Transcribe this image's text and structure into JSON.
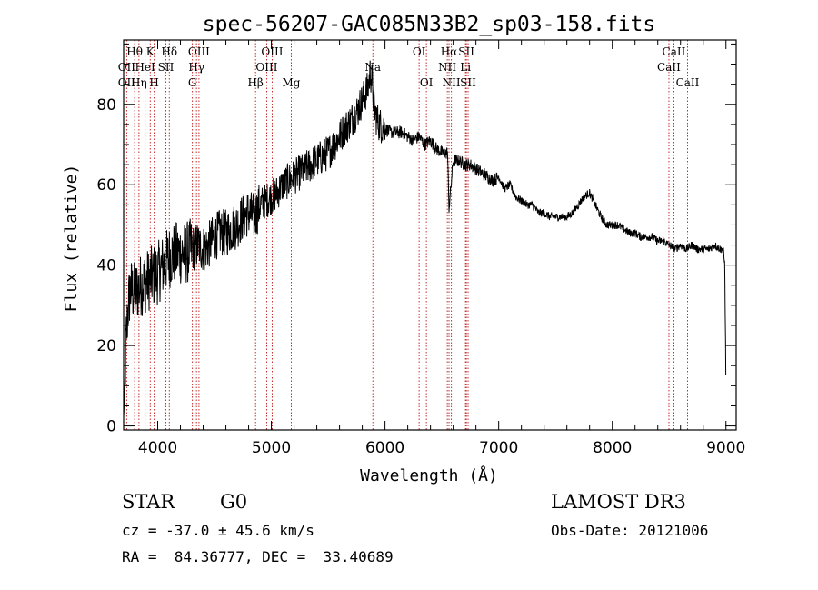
{
  "chart_data": {
    "type": "line",
    "title": "spec-56207-GAC085N33B2_sp03-158.fits",
    "xlabel": "Wavelength (Å)",
    "ylabel": "Flux (relative)",
    "xlim": [
      3700,
      9090
    ],
    "ylim": [
      -1,
      96
    ],
    "xticks": [
      4000,
      5000,
      6000,
      7000,
      8000,
      9000
    ],
    "yticks": [
      0,
      20,
      40,
      60,
      80
    ],
    "spectrum_anchors": {
      "x": [
        3700,
        3710,
        3720,
        3740,
        3760,
        3800,
        3850,
        3900,
        3950,
        4000,
        4050,
        4100,
        4150,
        4200,
        4250,
        4300,
        4350,
        4400,
        4450,
        4500,
        4550,
        4600,
        4650,
        4700,
        4750,
        4800,
        4850,
        4900,
        4950,
        5000,
        5050,
        5100,
        5150,
        5200,
        5250,
        5300,
        5350,
        5400,
        5450,
        5500,
        5550,
        5600,
        5650,
        5700,
        5750,
        5800,
        5850,
        5870,
        5890,
        5900,
        5920,
        5950,
        6000,
        6050,
        6100,
        6150,
        6200,
        6250,
        6300,
        6350,
        6400,
        6450,
        6500,
        6550,
        6563,
        6600,
        6650,
        6700,
        6750,
        6800,
        6850,
        6900,
        6950,
        7000,
        7050,
        7100,
        7150,
        7200,
        7250,
        7300,
        7350,
        7400,
        7450,
        7500,
        7550,
        7600,
        7650,
        7700,
        7750,
        7800,
        7850,
        7900,
        7950,
        8000,
        8050,
        8100,
        8150,
        8200,
        8250,
        8300,
        8350,
        8400,
        8450,
        8500,
        8550,
        8600,
        8650,
        8700,
        8750,
        8800,
        8850,
        8900,
        8950,
        8975,
        8990,
        9000
      ],
      "y": [
        2,
        10,
        20,
        30,
        34,
        33,
        35,
        36,
        37,
        38,
        40,
        42,
        43,
        43,
        43,
        44,
        45,
        44,
        45,
        47,
        48,
        48,
        49,
        50,
        52,
        53,
        52,
        55,
        56,
        57,
        58,
        60,
        61,
        62,
        63,
        64,
        65,
        66,
        67,
        68,
        70,
        72,
        74,
        76,
        78,
        81,
        84,
        88,
        85,
        80,
        77,
        75,
        74,
        73,
        73,
        73,
        72,
        71,
        72,
        70,
        71,
        69,
        68,
        68,
        54,
        66,
        66,
        65,
        65,
        64,
        63,
        62,
        61,
        62,
        59,
        60,
        57,
        56,
        55,
        55,
        53,
        53,
        52,
        52,
        52,
        52,
        53,
        55,
        57,
        58,
        55,
        52,
        50,
        50,
        50,
        49,
        48,
        48,
        47,
        47,
        47,
        46,
        46,
        45,
        44,
        45,
        44,
        45,
        44,
        44,
        44,
        45,
        44,
        44,
        40,
        9
      ]
    },
    "line_markers": [
      {
        "label": "Hθ",
        "x": 3797,
        "row": 1
      },
      {
        "label": "OII",
        "x": 3727,
        "row": 2
      },
      {
        "label": "OII",
        "x": 3727,
        "row": 3
      },
      {
        "label": "K",
        "x": 3934,
        "row": 1
      },
      {
        "label": "HeI",
        "x": 3889,
        "row": 2
      },
      {
        "label": "Hη",
        "x": 3835,
        "row": 3
      },
      {
        "label": "H",
        "x": 3969,
        "row": 3
      },
      {
        "label": "Hδ",
        "x": 4102,
        "row": 1
      },
      {
        "label": "SII",
        "x": 4072,
        "row": 2
      },
      {
        "label": "OIII",
        "x": 4363,
        "row": 1
      },
      {
        "label": "Hγ",
        "x": 4341,
        "row": 2
      },
      {
        "label": "G",
        "x": 4305,
        "row": 3
      },
      {
        "label": "OIII",
        "x": 5007,
        "row": 1
      },
      {
        "label": "OIII",
        "x": 4959,
        "row": 2
      },
      {
        "label": "Hβ",
        "x": 4861,
        "row": 3
      },
      {
        "label": "Mg",
        "x": 5175,
        "row": 3
      },
      {
        "label": "Na",
        "x": 5893,
        "row": 2
      },
      {
        "label": "OI",
        "x": 6300,
        "row": 1
      },
      {
        "label": "OI",
        "x": 6364,
        "row": 3
      },
      {
        "label": "Hα",
        "x": 6563,
        "row": 1
      },
      {
        "label": "SII",
        "x": 6716,
        "row": 1
      },
      {
        "label": "NII",
        "x": 6548,
        "row": 2
      },
      {
        "label": "Li",
        "x": 6708,
        "row": 2
      },
      {
        "label": "NII",
        "x": 6584,
        "row": 3
      },
      {
        "label": "SII",
        "x": 6731,
        "row": 3
      },
      {
        "label": "CaII",
        "x": 8542,
        "row": 1
      },
      {
        "label": "CaII",
        "x": 8498,
        "row": 2
      },
      {
        "label": "CaII",
        "x": 8662,
        "row": 3
      }
    ]
  },
  "info": {
    "class": "STAR",
    "subclass": "G0",
    "survey": "LAMOST DR3",
    "redshift": "cz = -37.0 ± 45.6 km/s",
    "obs_date": "Obs-Date: 20121006",
    "coords": "RA =  84.36777, DEC =  33.40689"
  }
}
